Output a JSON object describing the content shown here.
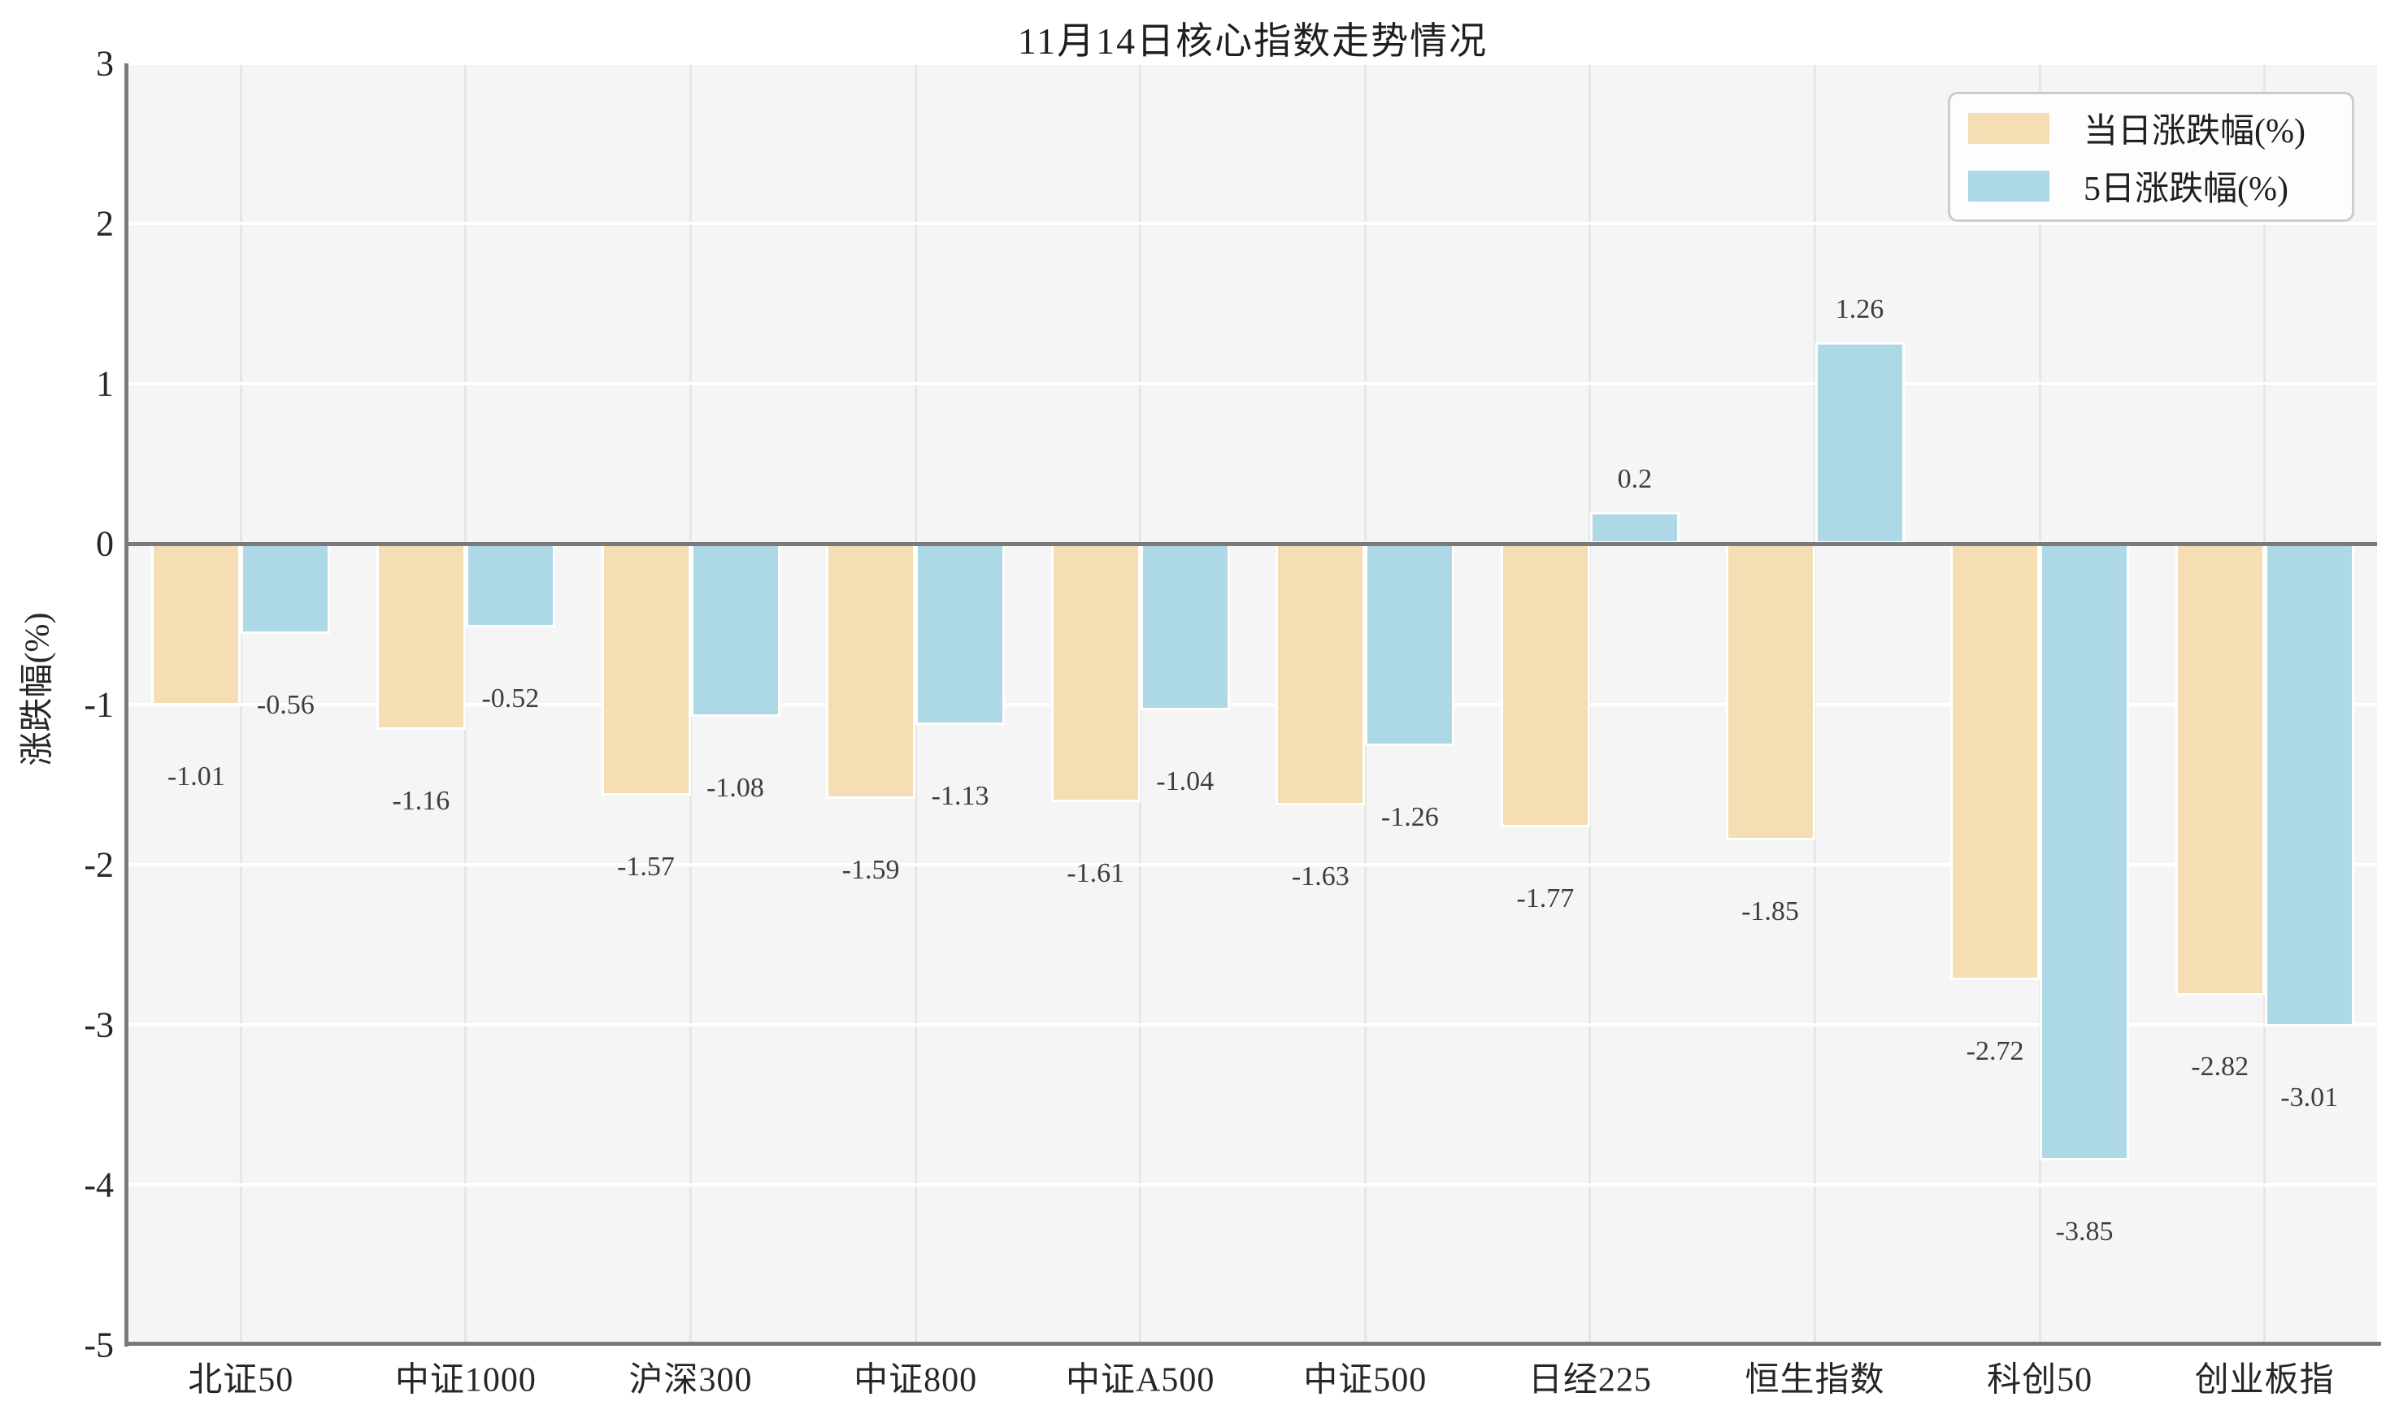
{
  "chart_data": {
    "type": "bar",
    "title": "11月14日核心指数走势情况",
    "ylabel": "涨跌幅(%)",
    "xlabel": "",
    "categories": [
      "北证50",
      "中证1000",
      "沪深300",
      "中证800",
      "中证A500",
      "中证500",
      "日经225",
      "恒生指数",
      "科创50",
      "创业板指"
    ],
    "series": [
      {
        "name": "当日涨跌幅(%)",
        "color": "#f5deb3",
        "values": [
          -1.01,
          -1.16,
          -1.57,
          -1.59,
          -1.61,
          -1.63,
          -1.77,
          -1.85,
          -2.72,
          -2.82
        ]
      },
      {
        "name": "5日涨跌幅(%)",
        "color": "#add8e6",
        "values": [
          -0.56,
          -0.52,
          -1.08,
          -1.13,
          -1.04,
          -1.26,
          0.2,
          1.26,
          -3.85,
          -3.01
        ]
      }
    ],
    "ylim": [
      -5,
      3
    ],
    "yticks": [
      3,
      2,
      1,
      0,
      -1,
      -2,
      -3,
      -4,
      -5
    ],
    "grid": true,
    "legend_position": "upper-right",
    "style": {
      "plot_bg": "#f5f5f5",
      "h_grid_color": "#ffffff",
      "v_grid_color": "#e6e6e6",
      "axis_line_color": "#7a7a7a",
      "tick_text_color": "#262626",
      "value_label_color": "#3d3d3d",
      "legend_border_color": "#cccccc",
      "legend_bg_color": "#fdfdfd"
    }
  }
}
